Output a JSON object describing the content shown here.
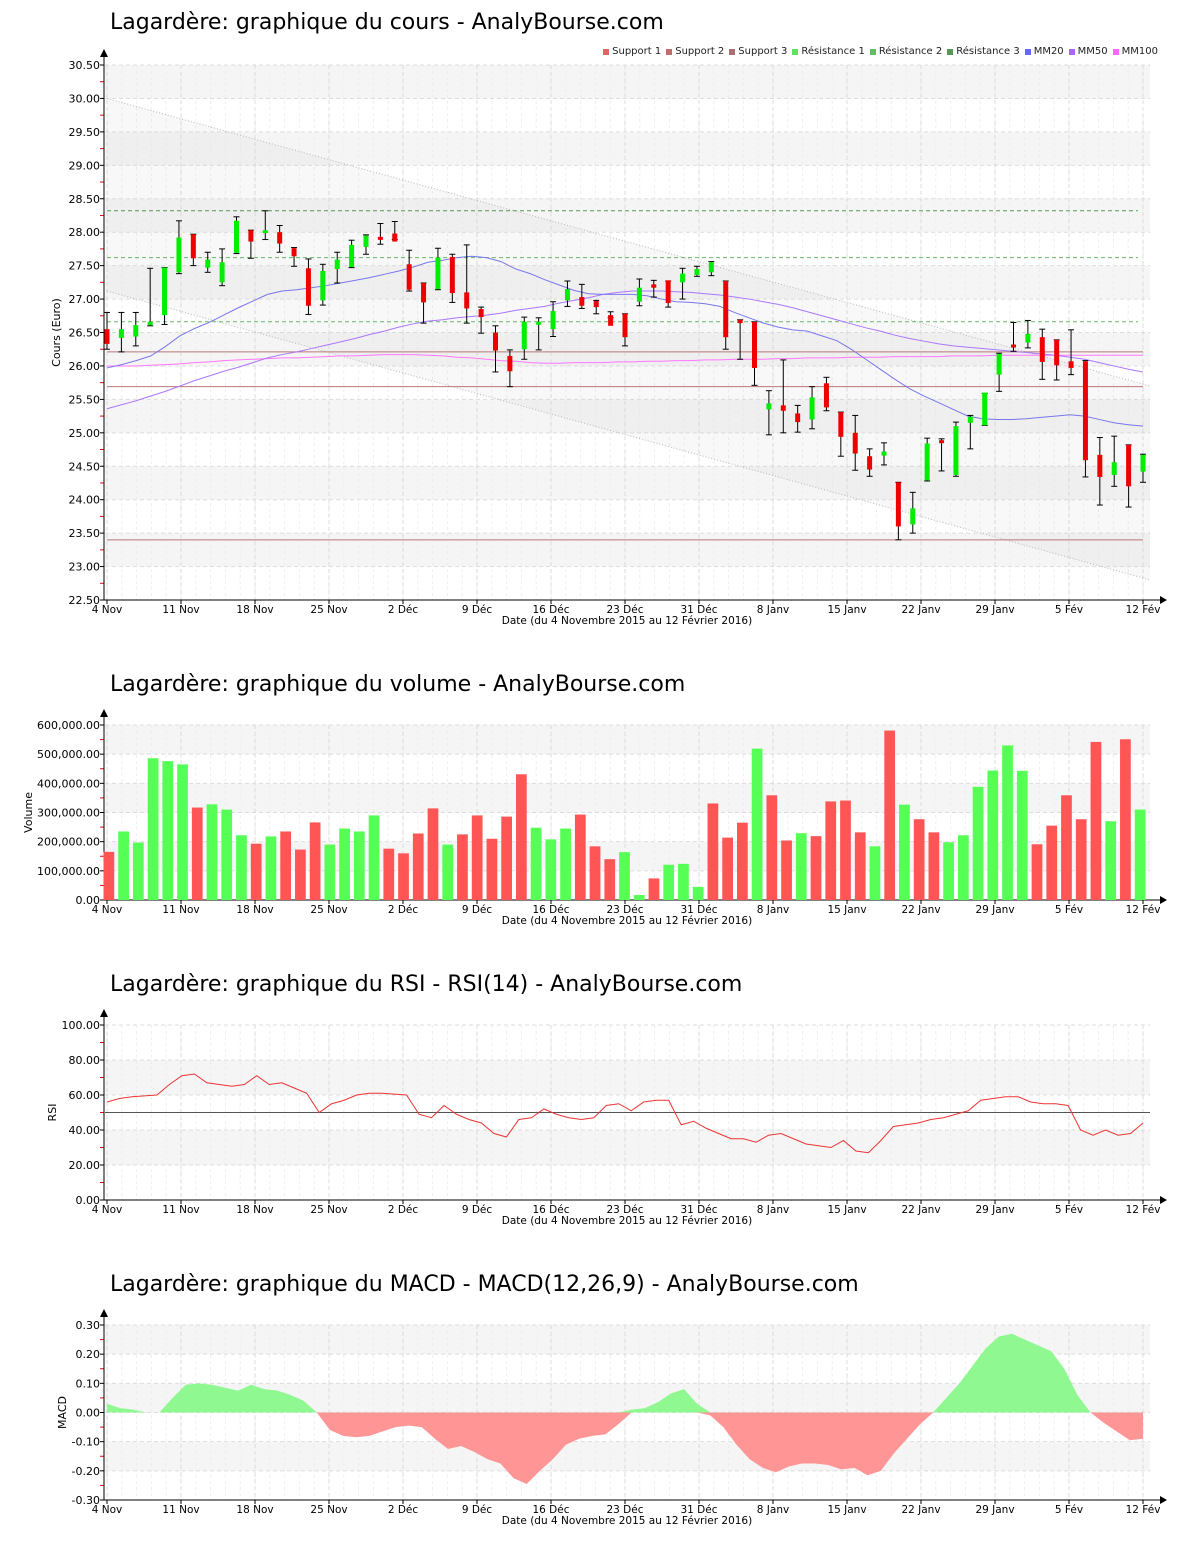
{
  "titles": {
    "cours": "Lagardère: graphique du cours - AnalyBourse.com",
    "volume": "Lagardère: graphique du volume - AnalyBourse.com",
    "rsi": "Lagardère: graphique du RSI - RSI(14) - AnalyBourse.com",
    "macd": "Lagardère: graphique du MACD - MACD(12,26,9) - AnalyBourse.com"
  },
  "legend": [
    {
      "label": "Support 1",
      "color": "#e06666"
    },
    {
      "label": "Support 2",
      "color": "#c46a6a"
    },
    {
      "label": "Support 3",
      "color": "#a87070"
    },
    {
      "label": "Résistance 1",
      "color": "#66dd66"
    },
    {
      "label": "Résistance 2",
      "color": "#66bb66"
    },
    {
      "label": "Résistance 3",
      "color": "#559955"
    },
    {
      "label": "MM20",
      "color": "#6666ff"
    },
    {
      "label": "MM50",
      "color": "#aa66ff"
    },
    {
      "label": "MM100",
      "color": "#ff66ff"
    }
  ],
  "x_ticks": [
    "4 Nov",
    "11 Nov",
    "18 Nov",
    "25 Nov",
    "2 Déc",
    "9 Déc",
    "16 Déc",
    "23 Déc",
    "31 Déc",
    "8 Janv",
    "15 Janv",
    "22 Janv",
    "29 Janv",
    "5 Fév",
    "12 Fév"
  ],
  "x_label": "Date (du 4 Novembre 2015 au 12 Février 2016)",
  "colors": {
    "up": "#00ee00",
    "down": "#ee0000",
    "vol_up": "#55ff55",
    "vol_down": "#ff5555",
    "rsi_line": "#ee3333",
    "macd_pos": "#90f890",
    "macd_neg": "#ff9595"
  },
  "chart_data": [
    {
      "type": "candlestick",
      "title": "Lagardère: graphique du cours - AnalyBourse.com",
      "xlabel": "Date (du 4 Novembre 2015 au 12 Février 2016)",
      "ylabel": "Cours (Euro)",
      "ylim": [
        22.5,
        30.5
      ],
      "yticks": [
        "22.50",
        "23.00",
        "23.50",
        "24.00",
        "24.50",
        "25.00",
        "25.50",
        "26.00",
        "26.50",
        "27.00",
        "27.50",
        "28.00",
        "28.50",
        "29.00",
        "29.50",
        "30.00",
        "30.50"
      ],
      "support_levels": {
        "support1": 26.21,
        "support2": 25.69,
        "support3": 23.4
      },
      "resistance_levels": {
        "resistance1": 26.66,
        "resistance2": 27.62,
        "resistance3": 28.32
      },
      "trend_channel": {
        "upper": [
          30.0,
          25.7
        ],
        "lower": [
          27.12,
          22.8
        ]
      },
      "candles": [
        {
          "o": 26.55,
          "h": 26.8,
          "l": 26.25,
          "c": 26.33
        },
        {
          "o": 26.42,
          "h": 26.8,
          "l": 26.21,
          "c": 26.55
        },
        {
          "o": 26.44,
          "h": 26.8,
          "l": 26.3,
          "c": 26.61
        },
        {
          "o": 26.61,
          "h": 27.46,
          "l": 26.6,
          "c": 26.66
        },
        {
          "o": 26.76,
          "h": 27.47,
          "l": 26.62,
          "c": 27.47
        },
        {
          "o": 27.4,
          "h": 28.17,
          "l": 27.38,
          "c": 27.92
        },
        {
          "o": 27.97,
          "h": 27.97,
          "l": 27.5,
          "c": 27.61
        },
        {
          "o": 27.47,
          "h": 27.7,
          "l": 27.4,
          "c": 27.59
        },
        {
          "o": 27.25,
          "h": 27.75,
          "l": 27.2,
          "c": 27.55
        },
        {
          "o": 27.69,
          "h": 28.23,
          "l": 27.68,
          "c": 28.17
        },
        {
          "o": 28.03,
          "h": 28.03,
          "l": 27.61,
          "c": 27.86
        },
        {
          "o": 27.99,
          "h": 28.32,
          "l": 27.89,
          "c": 28.03
        },
        {
          "o": 28.0,
          "h": 28.1,
          "l": 27.7,
          "c": 27.83
        },
        {
          "o": 27.76,
          "h": 27.77,
          "l": 27.49,
          "c": 27.64
        },
        {
          "o": 27.46,
          "h": 27.6,
          "l": 26.77,
          "c": 26.9
        },
        {
          "o": 26.98,
          "h": 27.52,
          "l": 26.91,
          "c": 27.42
        },
        {
          "o": 27.45,
          "h": 27.7,
          "l": 27.24,
          "c": 27.59
        },
        {
          "o": 27.48,
          "h": 27.88,
          "l": 27.47,
          "c": 27.81
        },
        {
          "o": 27.78,
          "h": 27.96,
          "l": 27.67,
          "c": 27.95
        },
        {
          "o": 27.93,
          "h": 28.13,
          "l": 27.82,
          "c": 27.9
        },
        {
          "o": 27.98,
          "h": 28.16,
          "l": 27.89,
          "c": 27.86
        },
        {
          "o": 27.52,
          "h": 27.73,
          "l": 27.12,
          "c": 27.14
        },
        {
          "o": 27.24,
          "h": 27.24,
          "l": 26.64,
          "c": 26.95
        },
        {
          "o": 27.15,
          "h": 27.76,
          "l": 27.14,
          "c": 27.62
        },
        {
          "o": 27.63,
          "h": 27.67,
          "l": 26.95,
          "c": 27.09
        },
        {
          "o": 27.1,
          "h": 27.81,
          "l": 26.64,
          "c": 26.86
        },
        {
          "o": 26.85,
          "h": 26.88,
          "l": 26.49,
          "c": 26.73
        },
        {
          "o": 26.5,
          "h": 26.6,
          "l": 25.91,
          "c": 26.23
        },
        {
          "o": 26.15,
          "h": 26.24,
          "l": 25.69,
          "c": 25.92
        },
        {
          "o": 26.25,
          "h": 26.73,
          "l": 26.1,
          "c": 26.66
        },
        {
          "o": 26.64,
          "h": 26.72,
          "l": 26.24,
          "c": 26.66
        },
        {
          "o": 26.55,
          "h": 26.96,
          "l": 26.44,
          "c": 26.82
        },
        {
          "o": 26.98,
          "h": 27.27,
          "l": 26.89,
          "c": 27.15
        },
        {
          "o": 27.03,
          "h": 27.22,
          "l": 26.86,
          "c": 26.9
        },
        {
          "o": 26.97,
          "h": 26.98,
          "l": 26.78,
          "c": 26.88
        },
        {
          "o": 26.76,
          "h": 26.81,
          "l": 26.72,
          "c": 26.6
        },
        {
          "o": 26.78,
          "h": 26.78,
          "l": 26.3,
          "c": 26.43
        },
        {
          "o": 26.96,
          "h": 27.3,
          "l": 26.9,
          "c": 27.17
        },
        {
          "o": 27.22,
          "h": 27.28,
          "l": 27.03,
          "c": 27.17
        },
        {
          "o": 27.28,
          "h": 27.27,
          "l": 26.88,
          "c": 26.94
        },
        {
          "o": 27.25,
          "h": 27.46,
          "l": 27.0,
          "c": 27.38
        },
        {
          "o": 27.36,
          "h": 27.49,
          "l": 27.34,
          "c": 27.45
        },
        {
          "o": 27.4,
          "h": 27.56,
          "l": 27.35,
          "c": 27.55
        },
        {
          "o": 27.27,
          "h": 27.27,
          "l": 26.25,
          "c": 26.43
        },
        {
          "o": 26.69,
          "h": 26.69,
          "l": 26.1,
          "c": 26.64
        },
        {
          "o": 26.66,
          "h": 26.66,
          "l": 25.71,
          "c": 25.97
        },
        {
          "o": 25.35,
          "h": 25.63,
          "l": 24.97,
          "c": 25.44
        },
        {
          "o": 25.41,
          "h": 26.09,
          "l": 25.0,
          "c": 25.33
        },
        {
          "o": 25.29,
          "h": 25.41,
          "l": 25.01,
          "c": 25.16
        },
        {
          "o": 25.2,
          "h": 25.69,
          "l": 25.06,
          "c": 25.53
        },
        {
          "o": 25.74,
          "h": 25.83,
          "l": 25.33,
          "c": 25.38
        },
        {
          "o": 25.31,
          "h": 25.31,
          "l": 24.65,
          "c": 24.94
        },
        {
          "o": 25.0,
          "h": 25.26,
          "l": 24.44,
          "c": 24.69
        },
        {
          "o": 24.65,
          "h": 24.76,
          "l": 24.35,
          "c": 24.45
        },
        {
          "o": 24.66,
          "h": 24.85,
          "l": 24.52,
          "c": 24.72
        },
        {
          "o": 24.26,
          "h": 24.26,
          "l": 23.4,
          "c": 23.6
        },
        {
          "o": 23.63,
          "h": 24.11,
          "l": 23.5,
          "c": 23.87
        },
        {
          "o": 24.29,
          "h": 24.92,
          "l": 24.28,
          "c": 24.84
        },
        {
          "o": 24.89,
          "h": 24.91,
          "l": 24.43,
          "c": 24.86
        },
        {
          "o": 24.37,
          "h": 25.16,
          "l": 24.35,
          "c": 25.1
        },
        {
          "o": 25.15,
          "h": 25.26,
          "l": 24.76,
          "c": 25.24
        },
        {
          "o": 25.11,
          "h": 25.59,
          "l": 25.11,
          "c": 25.6
        },
        {
          "o": 25.87,
          "h": 26.19,
          "l": 25.62,
          "c": 26.18
        },
        {
          "o": 26.32,
          "h": 26.65,
          "l": 26.22,
          "c": 26.28
        },
        {
          "o": 26.35,
          "h": 26.68,
          "l": 26.27,
          "c": 26.48
        },
        {
          "o": 26.43,
          "h": 26.55,
          "l": 25.8,
          "c": 26.06
        },
        {
          "o": 26.39,
          "h": 26.39,
          "l": 25.79,
          "c": 26.01
        },
        {
          "o": 26.07,
          "h": 26.54,
          "l": 25.87,
          "c": 25.97
        },
        {
          "o": 26.07,
          "h": 26.08,
          "l": 24.34,
          "c": 24.59
        },
        {
          "o": 24.67,
          "h": 24.93,
          "l": 23.92,
          "c": 24.34
        },
        {
          "o": 24.37,
          "h": 24.95,
          "l": 24.2,
          "c": 24.56
        },
        {
          "o": 24.82,
          "h": 24.82,
          "l": 23.89,
          "c": 24.2
        }
      ],
      "last_candle": {
        "o": 24.42,
        "h": 24.68,
        "l": 24.26,
        "c": 24.67
      },
      "mm20": [
        25.97,
        26.02,
        26.08,
        26.15,
        26.29,
        26.45,
        26.56,
        26.65,
        26.76,
        26.87,
        26.97,
        27.07,
        27.12,
        27.14,
        27.17,
        27.2,
        27.24,
        27.28,
        27.32,
        27.37,
        27.42,
        27.48,
        27.55,
        27.58,
        27.62,
        27.64,
        27.62,
        27.56,
        27.45,
        27.38,
        27.29,
        27.21,
        27.13,
        27.08,
        27.07,
        27.07,
        27.07,
        27.05,
        27.0,
        26.96,
        26.95,
        26.93,
        26.89,
        26.8,
        26.72,
        26.64,
        26.58,
        26.54,
        26.52,
        26.45,
        26.38,
        26.25,
        26.1,
        25.95,
        25.8,
        25.66,
        25.55,
        25.45,
        25.35,
        25.25,
        25.21,
        25.2,
        25.2,
        25.21,
        25.23,
        25.25,
        25.27,
        25.25,
        25.2,
        25.15,
        25.12,
        25.1
      ],
      "mm50": [
        25.36,
        25.42,
        25.48,
        25.55,
        25.62,
        25.7,
        25.78,
        25.85,
        25.92,
        25.98,
        26.05,
        26.12,
        26.17,
        26.21,
        26.26,
        26.31,
        26.36,
        26.41,
        26.47,
        26.52,
        26.58,
        26.63,
        26.67,
        26.69,
        26.72,
        26.74,
        26.76,
        26.79,
        26.83,
        26.86,
        26.89,
        26.94,
        26.98,
        27.02,
        27.07,
        27.1,
        27.12,
        27.12,
        27.12,
        27.11,
        27.1,
        27.08,
        27.06,
        27.03,
        27.0,
        26.96,
        26.92,
        26.87,
        26.81,
        26.75,
        26.69,
        26.63,
        26.57,
        26.52,
        26.46,
        26.41,
        26.37,
        26.33,
        26.3,
        26.28,
        26.26,
        26.24,
        26.22,
        26.2,
        26.18,
        26.16,
        26.13,
        26.1,
        26.05,
        26.0,
        25.95,
        25.91
      ],
      "mm100": [
        26.0,
        26.0,
        26.0,
        26.01,
        26.02,
        26.03,
        26.05,
        26.06,
        26.08,
        26.09,
        26.1,
        26.11,
        26.12,
        26.12,
        26.13,
        26.14,
        26.15,
        26.15,
        26.16,
        26.17,
        26.17,
        26.17,
        26.16,
        26.15,
        26.13,
        26.12,
        26.1,
        26.08,
        26.07,
        26.05,
        26.04,
        26.04,
        26.05,
        26.05,
        26.05,
        26.06,
        26.06,
        26.07,
        26.07,
        26.08,
        26.08,
        26.09,
        26.09,
        26.1,
        26.1,
        26.1,
        26.11,
        26.11,
        26.12,
        26.12,
        26.12,
        26.13,
        26.13,
        26.13,
        26.14,
        26.14,
        26.14,
        26.14,
        26.15,
        26.15,
        26.15,
        26.16,
        26.16,
        26.16,
        26.16,
        26.16,
        26.16,
        26.16,
        26.16,
        26.16,
        26.16,
        26.16
      ]
    },
    {
      "type": "bar",
      "title": "Lagardère: graphique du volume - AnalyBourse.com",
      "xlabel": "Date (du 4 Novembre 2015 au 12 Février 2016)",
      "ylabel": "Volume",
      "ylim": [
        0,
        600000
      ],
      "yticks": [
        "0.00",
        "100,000.00",
        "200,000.00",
        "300,000.00",
        "400,000.00",
        "500,000.00",
        "600,000.00"
      ],
      "values": [
        165000,
        235000,
        197000,
        486000,
        476000,
        465000,
        317000,
        328000,
        310000,
        222000,
        193000,
        218000,
        235000,
        173000,
        266000,
        190000,
        245000,
        235000,
        290000,
        176000,
        160000,
        228000,
        314000,
        190000,
        225000,
        290000,
        210000,
        286000,
        431000,
        248000,
        208000,
        245000,
        293000,
        184000,
        140000,
        164000,
        17000,
        74000,
        121000,
        124000,
        45000,
        331000,
        214000,
        265000,
        519000,
        359000,
        204000,
        229000,
        219000,
        338000,
        341000,
        232000,
        184000,
        581000,
        327000,
        277000,
        232000,
        198000,
        222000,
        388000,
        444000,
        530000,
        443000,
        191000,
        255000,
        359000,
        277000,
        542000,
        270000,
        551000,
        310000
      ],
      "up": [
        false,
        true,
        true,
        true,
        true,
        true,
        false,
        true,
        true,
        true,
        false,
        true,
        false,
        false,
        false,
        true,
        true,
        true,
        true,
        false,
        false,
        false,
        false,
        true,
        false,
        false,
        false,
        false,
        false,
        true,
        true,
        true,
        false,
        false,
        false,
        true,
        true,
        false,
        true,
        true,
        true,
        false,
        false,
        false,
        true,
        false,
        false,
        true,
        false,
        false,
        false,
        false,
        true,
        false,
        true,
        false,
        false,
        true,
        true,
        true,
        true,
        true,
        true,
        false,
        false,
        false,
        false,
        false,
        true,
        false,
        true
      ]
    },
    {
      "type": "line",
      "title": "Lagardère: graphique du RSI - RSI(14) - AnalyBourse.com",
      "xlabel": "Date (du 4 Novembre 2015 au 12 Février 2016)",
      "ylabel": "RSI",
      "ylim": [
        0,
        100
      ],
      "yticks": [
        "0.00",
        "20.00",
        "40.00",
        "60.00",
        "80.00",
        "100.00"
      ],
      "reference_line": 50,
      "values": [
        56,
        58,
        59,
        59.5,
        60,
        66,
        71,
        72,
        67,
        66,
        65,
        66,
        71,
        66,
        67,
        64,
        61,
        50,
        55,
        57,
        60,
        61,
        61,
        60.5,
        60,
        49,
        47,
        54,
        49,
        46,
        44,
        38,
        36,
        46,
        47,
        52,
        49,
        47,
        46,
        47,
        54,
        55,
        51,
        56,
        57,
        57,
        43,
        45,
        41,
        38,
        35,
        35,
        33,
        37,
        38,
        35,
        32,
        31,
        30,
        34,
        28,
        27,
        34,
        42,
        43,
        44,
        46,
        47,
        49,
        51,
        57,
        58,
        59,
        59,
        56,
        55,
        55,
        54,
        40,
        37,
        40,
        37,
        38,
        44
      ]
    },
    {
      "type": "area",
      "title": "Lagardère: graphique du MACD - MACD(12,26,9) - AnalyBourse.com",
      "xlabel": "Date (du 4 Novembre 2015 au 12 Février 2016)",
      "ylabel": "MACD",
      "ylim": [
        -0.3,
        0.3
      ],
      "yticks": [
        "-0.30",
        "-0.20",
        "-0.10",
        "0.00",
        "0.10",
        "0.20",
        "0.30"
      ],
      "values": [
        0.03,
        0.015,
        0.01,
        0.0,
        0.0,
        0.05,
        0.095,
        0.1,
        0.095,
        0.085,
        0.075,
        0.095,
        0.08,
        0.075,
        0.06,
        0.04,
        0.0,
        -0.06,
        -0.08,
        -0.085,
        -0.08,
        -0.065,
        -0.05,
        -0.045,
        -0.05,
        -0.09,
        -0.125,
        -0.115,
        -0.135,
        -0.16,
        -0.175,
        -0.225,
        -0.245,
        -0.2,
        -0.16,
        -0.11,
        -0.09,
        -0.08,
        -0.075,
        -0.04,
        0.01,
        0.015,
        0.035,
        0.065,
        0.08,
        0.03,
        -0.01,
        -0.05,
        -0.11,
        -0.16,
        -0.19,
        -0.205,
        -0.185,
        -0.175,
        -0.175,
        -0.18,
        -0.195,
        -0.19,
        -0.215,
        -0.2,
        -0.14,
        -0.09,
        -0.04,
        0.0,
        0.05,
        0.1,
        0.16,
        0.22,
        0.26,
        0.27,
        0.25,
        0.23,
        0.21,
        0.15,
        0.06,
        0.0,
        -0.035,
        -0.065,
        -0.095,
        -0.09
      ]
    }
  ]
}
